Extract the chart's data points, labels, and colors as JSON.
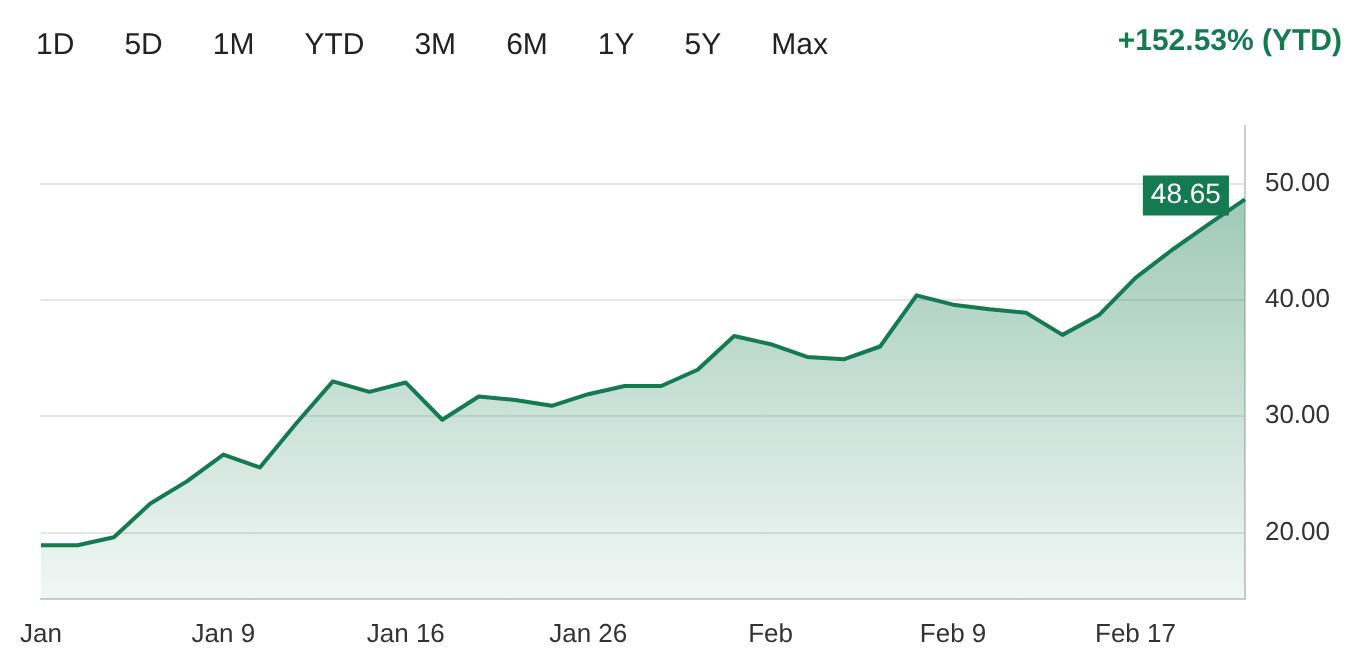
{
  "chart_data": {
    "type": "area",
    "subtitle": "+152.53% (YTD)",
    "annotations": [
      "1D",
      "5D",
      "1M",
      "YTD",
      "3M",
      "6M",
      "1Y",
      "5Y",
      "Max"
    ],
    "categories": [
      "Jan",
      null,
      null,
      null,
      null,
      "Jan 9",
      null,
      null,
      null,
      null,
      "Jan 16",
      null,
      null,
      null,
      null,
      "Jan 26",
      null,
      null,
      null,
      null,
      "Feb",
      null,
      null,
      null,
      null,
      "Feb 9",
      null,
      null,
      null,
      null,
      "Feb 17",
      null,
      null,
      null
    ],
    "series": [
      {
        "color": "#137a52",
        "values": [
          18.9,
          18.9,
          19.6,
          22.5,
          24.4,
          26.7,
          25.6,
          29.4,
          33.0,
          32.1,
          32.9,
          29.7,
          31.7,
          31.4,
          30.9,
          31.9,
          32.6,
          32.6,
          34.0,
          36.9,
          36.2,
          35.1,
          34.9,
          36.0,
          40.4,
          39.6,
          39.2,
          38.9,
          37.0,
          38.7,
          41.9,
          44.3,
          46.5,
          48.65
        ],
        "value_labels": [
          null,
          null,
          null,
          null,
          null,
          null,
          null,
          null,
          null,
          null,
          null,
          null,
          null,
          null,
          null,
          null,
          null,
          null,
          null,
          null,
          null,
          null,
          null,
          null,
          null,
          null,
          null,
          null,
          null,
          null,
          null,
          null,
          null,
          "48.65"
        ]
      }
    ],
    "ylim": [
      14.3,
      55
    ],
    "yticks": [
      {
        "value": 20,
        "label": "20.00"
      },
      {
        "value": 30,
        "label": "30.00"
      },
      {
        "value": 40,
        "label": "40.00"
      },
      {
        "value": 50,
        "label": "50.00"
      }
    ],
    "grid": "y",
    "legend": false
  }
}
